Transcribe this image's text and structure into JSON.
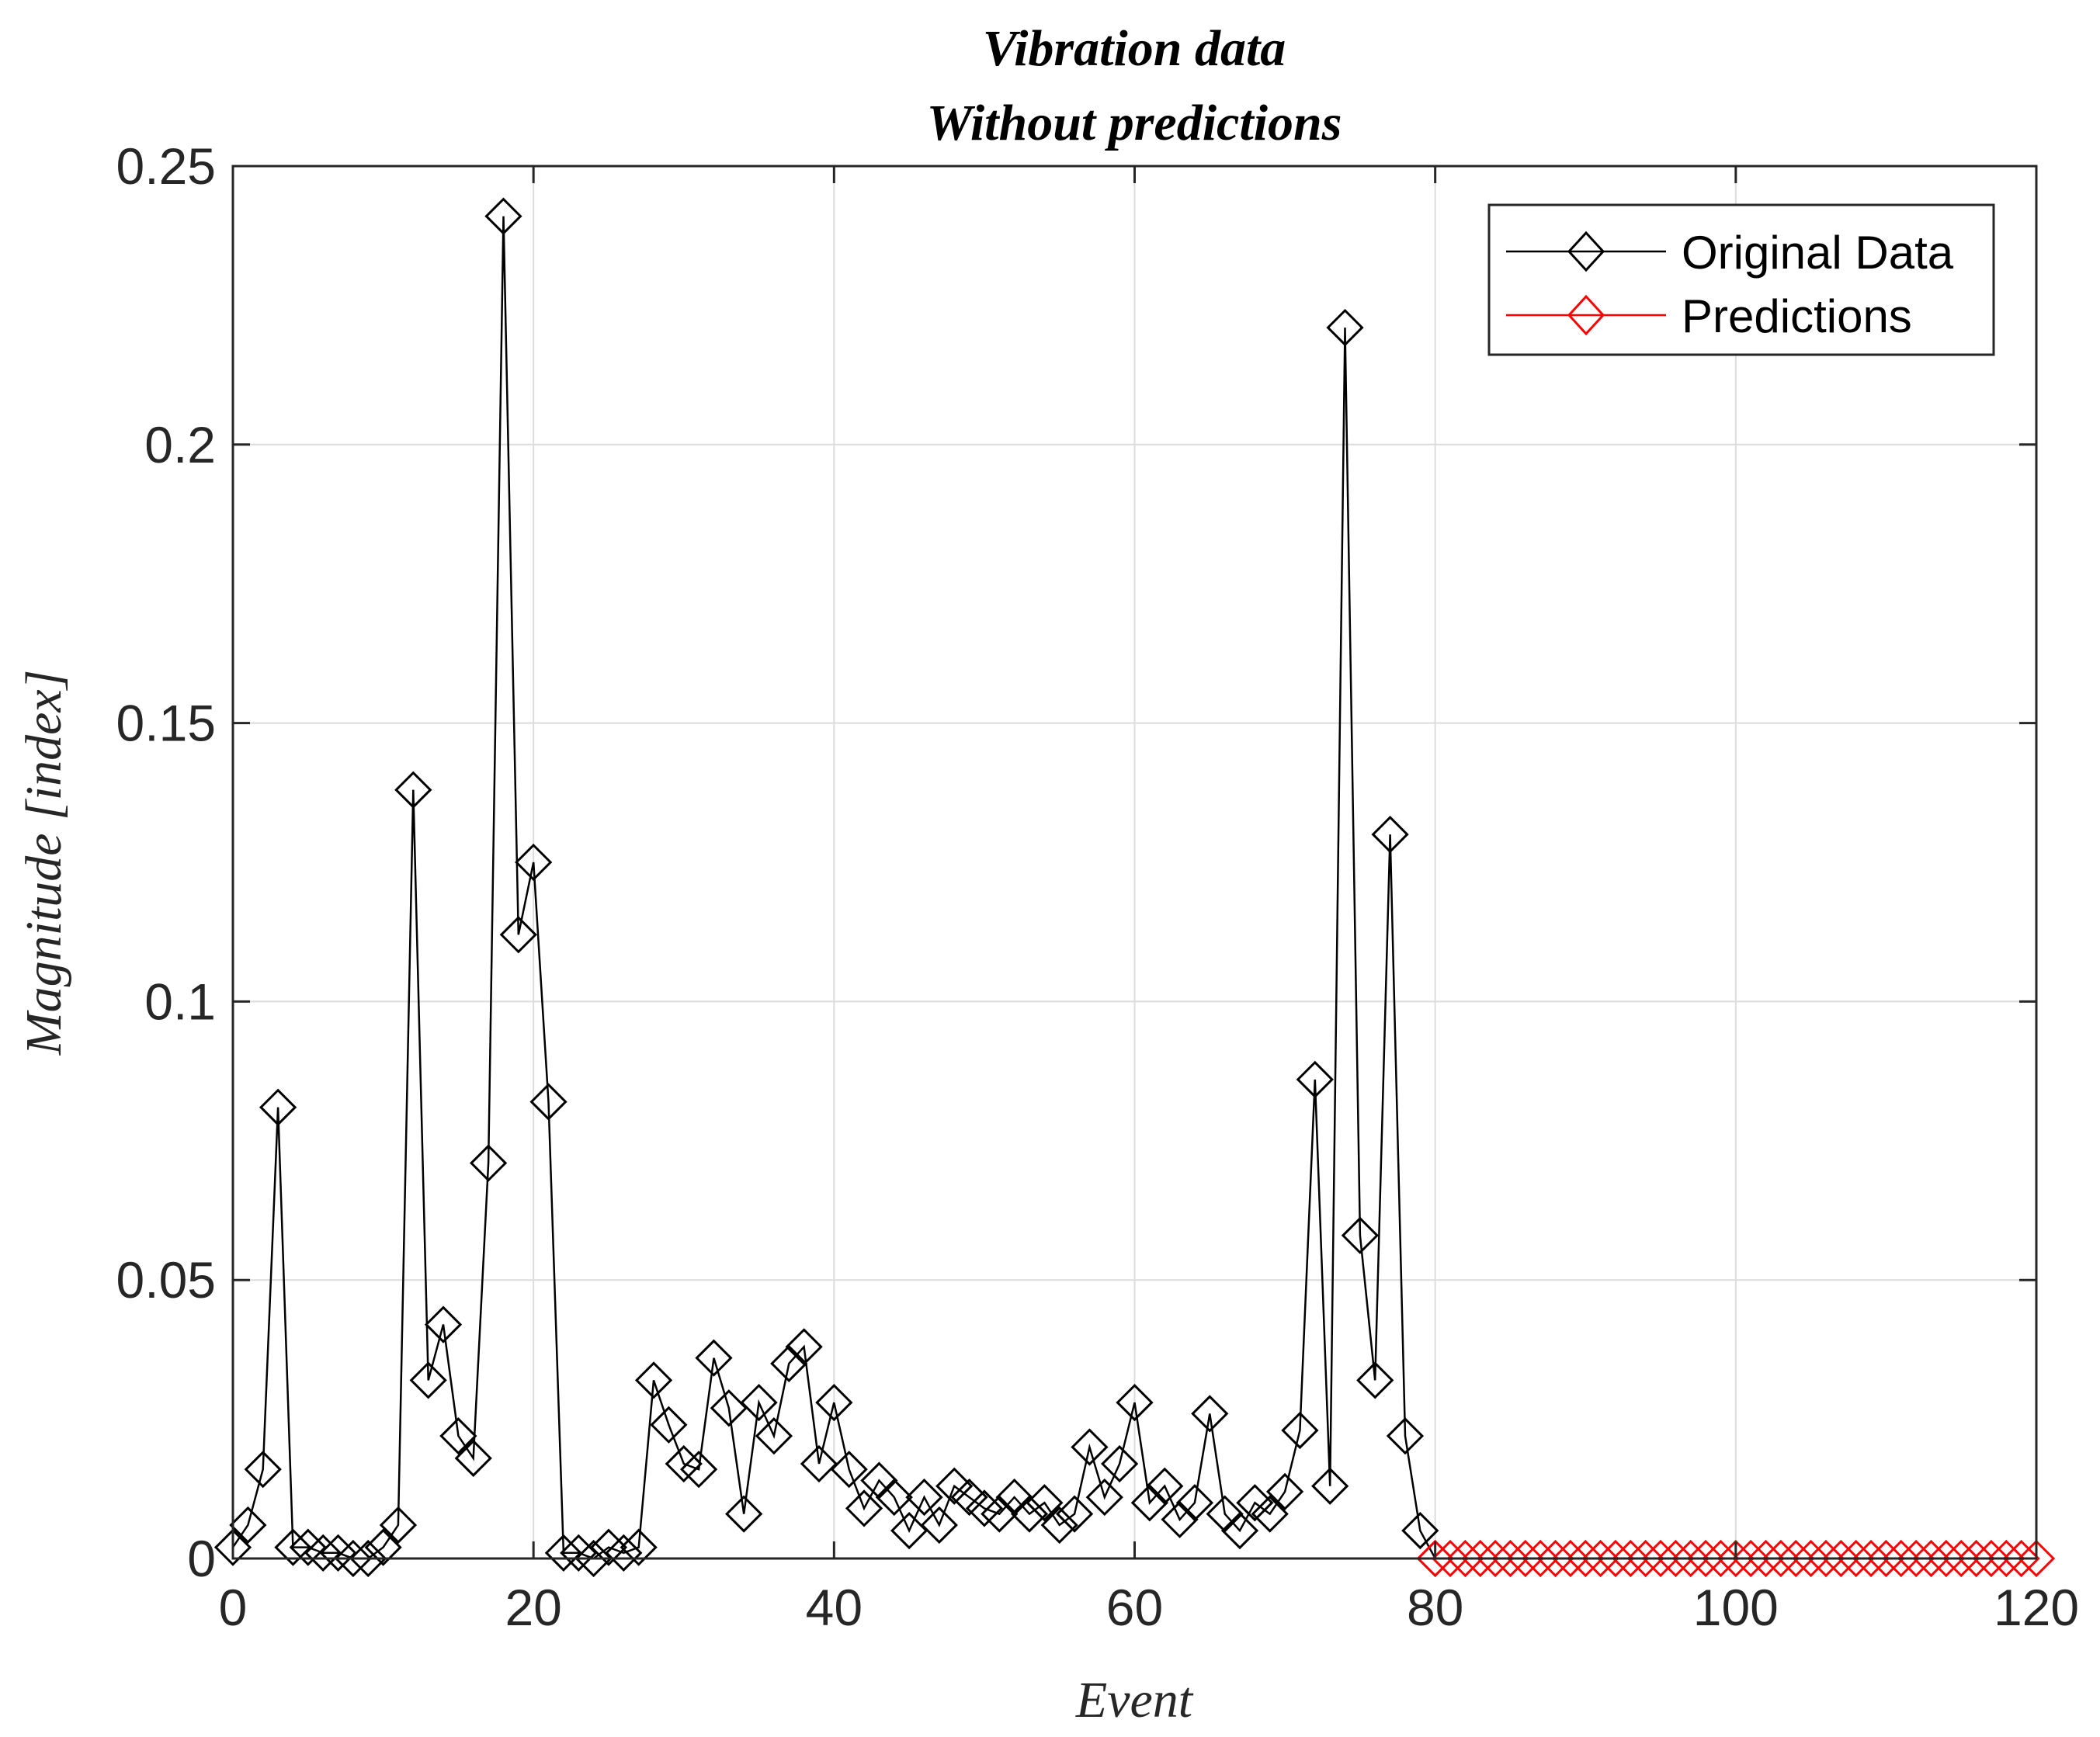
{
  "chart_data": {
    "type": "line",
    "title": [
      "Vibration data",
      "Without predictions"
    ],
    "xlabel": "Event",
    "ylabel": "Magnitude [index]",
    "xlim": [
      0,
      120
    ],
    "ylim": [
      0,
      0.25
    ],
    "xticks": [
      0,
      20,
      40,
      60,
      80,
      100,
      120
    ],
    "yticks": [
      0,
      0.05,
      0.1,
      0.15,
      0.2,
      0.25
    ],
    "grid": true,
    "legend_position": "top-right",
    "series": [
      {
        "name": "Original Data",
        "color": "#000000",
        "marker": "diamond",
        "x": [
          0,
          1,
          2,
          3,
          4,
          5,
          6,
          7,
          8,
          9,
          10,
          11,
          12,
          13,
          14,
          15,
          16,
          17,
          18,
          19,
          20,
          21,
          22,
          23,
          24,
          25,
          26,
          27,
          28,
          29,
          30,
          31,
          32,
          33,
          34,
          35,
          36,
          37,
          38,
          39,
          40,
          41,
          42,
          43,
          44,
          45,
          46,
          47,
          48,
          49,
          50,
          51,
          52,
          53,
          54,
          55,
          56,
          57,
          58,
          59,
          60,
          61,
          62,
          63,
          64,
          65,
          66,
          67,
          68,
          69,
          70,
          71,
          72,
          73,
          74,
          75,
          76,
          77,
          78,
          79,
          80
        ],
        "values": [
          0.002,
          0.006,
          0.016,
          0.081,
          0.002,
          0.002,
          0.001,
          0.001,
          0,
          0,
          0.002,
          0.006,
          0.138,
          0.032,
          0.042,
          0.022,
          0.018,
          0.071,
          0.241,
          0.112,
          0.125,
          0.082,
          0.001,
          0.001,
          0,
          0.002,
          0.001,
          0.002,
          0.032,
          0.024,
          0.017,
          0.016,
          0.036,
          0.027,
          0.008,
          0.028,
          0.022,
          0.035,
          0.038,
          0.017,
          0.028,
          0.016,
          0.009,
          0.014,
          0.011,
          0.005,
          0.011,
          0.006,
          0.013,
          0.011,
          0.009,
          0.008,
          0.011,
          0.008,
          0.01,
          0.006,
          0.008,
          0.02,
          0.011,
          0.017,
          0.028,
          0.01,
          0.013,
          0.007,
          0.01,
          0.026,
          0.008,
          0.005,
          0.01,
          0.008,
          0.012,
          0.023,
          0.086,
          0.013,
          0.221,
          0.058,
          0.032,
          0.13,
          0.022,
          0.005,
          0
        ]
      },
      {
        "name": "Predictions",
        "color": "#ff0000",
        "marker": "diamond",
        "x": [
          80,
          81,
          82,
          83,
          84,
          85,
          86,
          87,
          88,
          89,
          90,
          91,
          92,
          93,
          94,
          95,
          96,
          97,
          98,
          99,
          100,
          101,
          102,
          103,
          104,
          105,
          106,
          107,
          108,
          109,
          110,
          111,
          112,
          113,
          114,
          115,
          116,
          117,
          118,
          119,
          120
        ],
        "values": [
          0,
          0,
          0,
          0,
          0,
          0,
          0,
          0,
          0,
          0,
          0,
          0,
          0,
          0,
          0,
          0,
          0,
          0,
          0,
          0,
          0,
          0,
          0,
          0,
          0,
          0,
          0,
          0,
          0,
          0,
          0,
          0,
          0,
          0,
          0,
          0,
          0,
          0,
          0,
          0,
          0
        ]
      }
    ]
  }
}
